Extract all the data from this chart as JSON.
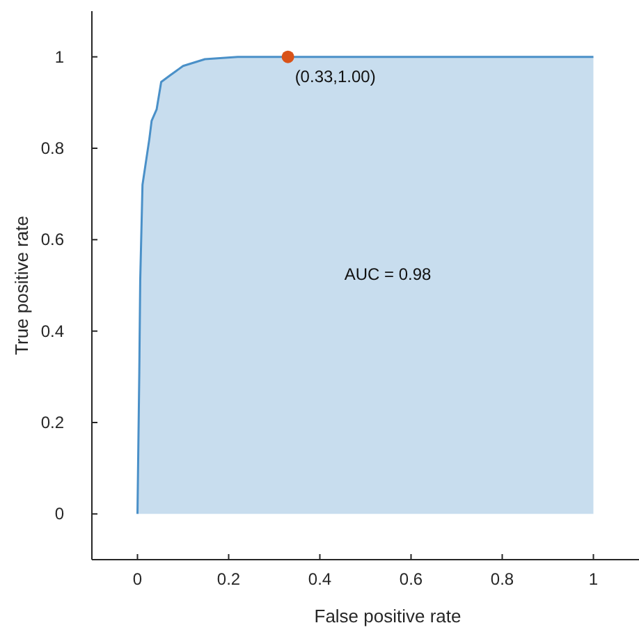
{
  "chart_data": {
    "type": "area",
    "xlabel": "False positive rate",
    "ylabel": "True positive rate",
    "xlim": [
      -0.1,
      1.1
    ],
    "ylim": [
      -0.1,
      1.1
    ],
    "xticks": [
      0,
      0.2,
      0.4,
      0.6,
      0.8,
      1
    ],
    "yticks": [
      0,
      0.2,
      0.4,
      0.6,
      0.8,
      1
    ],
    "grid": false,
    "series": [
      {
        "color": "#4a90c8",
        "x": [
          0,
          0.004,
          0.006,
          0.011,
          0.026,
          0.031,
          0.042,
          0.052,
          0.072,
          0.1,
          0.148,
          0.22,
          0.33,
          1
        ],
        "values": [
          0,
          0.31,
          0.51,
          0.72,
          0.82,
          0.86,
          0.885,
          0.945,
          0.96,
          0.98,
          0.995,
          1,
          1,
          1
        ]
      },
      {
        "type": "scatter",
        "color": "#d95319",
        "x": [
          0.33
        ],
        "values": [
          1
        ],
        "marker": "circle"
      }
    ],
    "annotations": [
      {
        "text": "(0.33,1.00)",
        "x": 0.33,
        "y": 1
      },
      "AUC = 0.98"
    ]
  }
}
